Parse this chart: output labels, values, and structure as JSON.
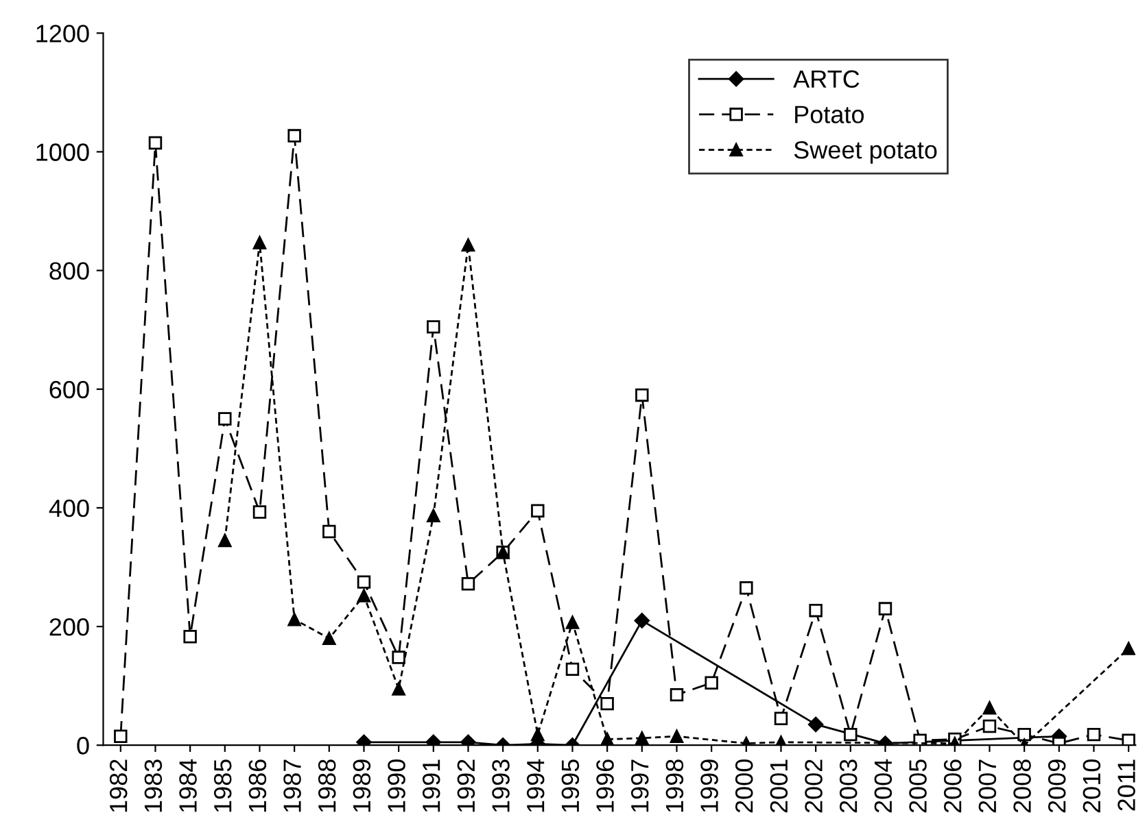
{
  "chart_data": {
    "type": "line",
    "categories": [
      "1982",
      "1983",
      "1984",
      "1985",
      "1986",
      "1987",
      "1988",
      "1989",
      "1990",
      "1991",
      "1992",
      "1993",
      "1994",
      "1995",
      "1996",
      "1997",
      "1998",
      "1999",
      "2000",
      "2001",
      "2002",
      "2003",
      "2004",
      "2005",
      "2006",
      "2007",
      "2008",
      "2009",
      "2010",
      "2011"
    ],
    "series": [
      {
        "name": "ARTC",
        "color": "#000000",
        "marker": "diamond",
        "line_style": "solid",
        "values": [
          null,
          null,
          null,
          null,
          null,
          null,
          null,
          5,
          null,
          5,
          5,
          0,
          2,
          0,
          null,
          210,
          null,
          null,
          null,
          null,
          35,
          null,
          3,
          null,
          null,
          null,
          null,
          15,
          null,
          null
        ]
      },
      {
        "name": "Potato",
        "color": "#000000",
        "marker": "square",
        "line_style": "dashed",
        "values": [
          15,
          1015,
          183,
          550,
          393,
          1027,
          360,
          275,
          148,
          705,
          272,
          325,
          395,
          128,
          70,
          590,
          85,
          105,
          265,
          45,
          227,
          18,
          230,
          8,
          10,
          32,
          18,
          3,
          18,
          8
        ]
      },
      {
        "name": "Sweet potato",
        "color": "#000000",
        "marker": "triangle",
        "line_style": "dotted",
        "values": [
          null,
          null,
          null,
          345,
          847,
          212,
          180,
          252,
          95,
          387,
          843,
          325,
          18,
          207,
          10,
          12,
          15,
          null,
          3,
          5,
          null,
          null,
          null,
          null,
          3,
          63,
          0,
          null,
          null,
          163
        ]
      }
    ],
    "ylim": [
      0,
      1200
    ],
    "yticks": [
      0,
      200,
      400,
      600,
      800,
      1000,
      1200
    ],
    "grid": false,
    "legend": "top right"
  }
}
